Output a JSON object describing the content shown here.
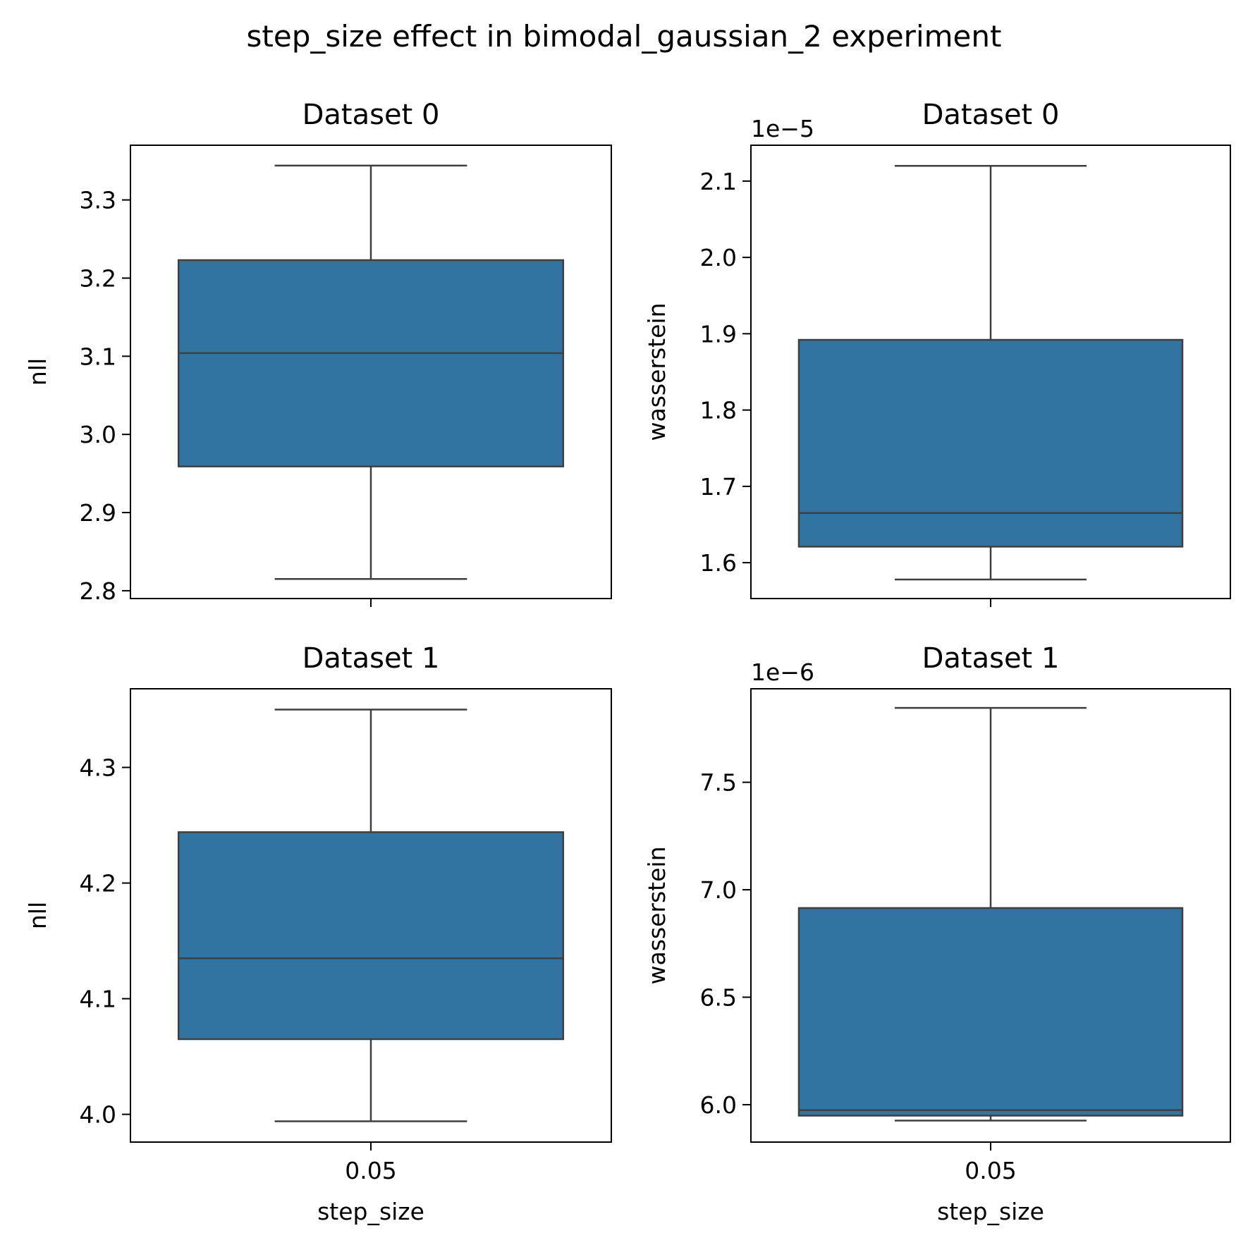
{
  "figure": {
    "suptitle": "step_size effect in bimodal_gaussian_2 experiment"
  },
  "chart_data": [
    {
      "type": "box",
      "title": "Dataset 0",
      "xlabel": "",
      "ylabel": "nll",
      "categories": [
        "0.05"
      ],
      "offset_text": "",
      "ylim": [
        2.79,
        3.37
      ],
      "yticks": [
        2.8,
        2.9,
        3.0,
        3.1,
        3.2,
        3.3
      ],
      "ytick_labels": [
        "2.8",
        "2.9",
        "3.0",
        "3.1",
        "3.2",
        "3.3"
      ],
      "boxes": [
        {
          "category": "0.05",
          "whisker_low": 2.815,
          "q1": 2.959,
          "median": 3.104,
          "q3": 3.223,
          "whisker_high": 3.344
        }
      ],
      "box_color": "#3274a1",
      "line_color": "#3f3f3f"
    },
    {
      "type": "box",
      "title": "Dataset 0",
      "xlabel": "",
      "ylabel": "wasserstein",
      "categories": [
        "0.05"
      ],
      "offset_text": "1e−5",
      "ylim": [
        1.553,
        2.147
      ],
      "yticks": [
        1.6,
        1.7,
        1.8,
        1.9,
        2.0,
        2.1
      ],
      "ytick_labels": [
        "1.6",
        "1.7",
        "1.8",
        "1.9",
        "2.0",
        "2.1"
      ],
      "boxes": [
        {
          "category": "0.05",
          "whisker_low": 1.578,
          "q1": 1.621,
          "median": 1.665,
          "q3": 1.892,
          "whisker_high": 2.12
        }
      ],
      "box_color": "#3274a1",
      "line_color": "#3f3f3f"
    },
    {
      "type": "box",
      "title": "Dataset 1",
      "xlabel": "step_size",
      "ylabel": "nll",
      "categories": [
        "0.05"
      ],
      "offset_text": "",
      "ylim": [
        3.976,
        4.368
      ],
      "yticks": [
        4.0,
        4.1,
        4.2,
        4.3
      ],
      "ytick_labels": [
        "4.0",
        "4.1",
        "4.2",
        "4.3"
      ],
      "boxes": [
        {
          "category": "0.05",
          "whisker_low": 3.994,
          "q1": 4.065,
          "median": 4.135,
          "q3": 4.244,
          "whisker_high": 4.35
        }
      ],
      "box_color": "#3274a1",
      "line_color": "#3f3f3f"
    },
    {
      "type": "box",
      "title": "Dataset 1",
      "xlabel": "step_size",
      "ylabel": "wasserstein",
      "categories": [
        "0.05"
      ],
      "offset_text": "1e−6",
      "ylim": [
        5.826,
        7.935
      ],
      "yticks": [
        6.0,
        6.5,
        7.0,
        7.5
      ],
      "ytick_labels": [
        "6.0",
        "6.5",
        "7.0",
        "7.5"
      ],
      "boxes": [
        {
          "category": "0.05",
          "whisker_low": 5.926,
          "q1": 5.949,
          "median": 5.975,
          "q3": 6.915,
          "whisker_high": 7.846
        }
      ],
      "box_color": "#3274a1",
      "line_color": "#3f3f3f"
    }
  ]
}
